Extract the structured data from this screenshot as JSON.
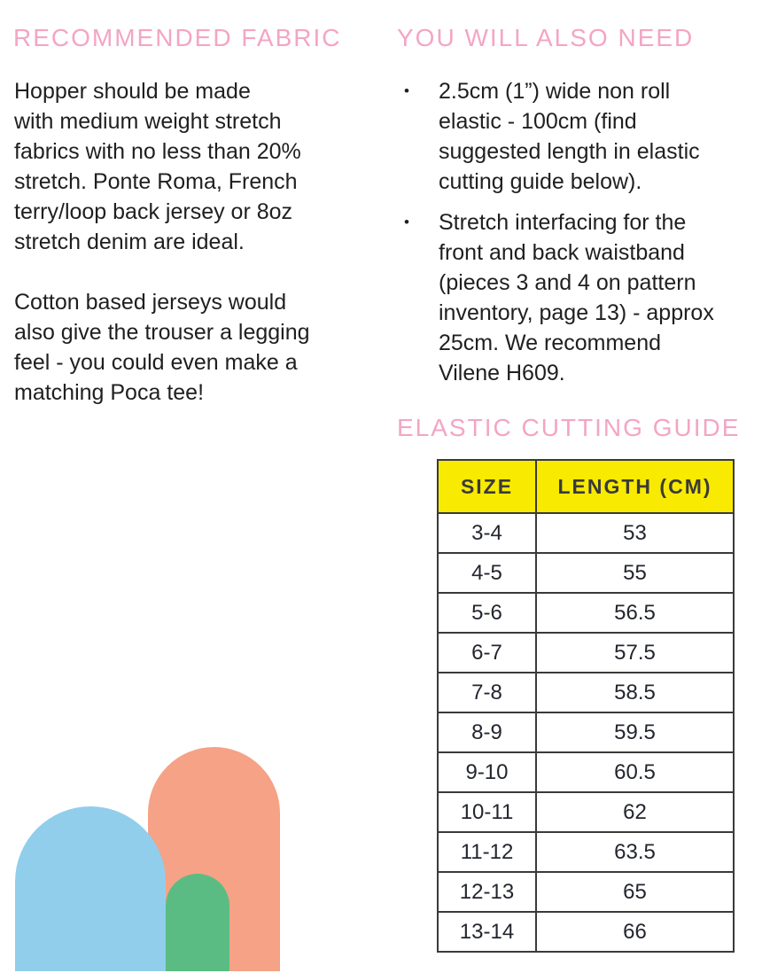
{
  "colors": {
    "heading-pink": "#f4a5c4",
    "body-text": "#1f1f1f",
    "table-yellow": "#f8ea00",
    "table-border": "#3a3a3a",
    "arch-blue": "#91ceec",
    "arch-salmon": "#f5a286",
    "arch-green": "#5bbc83"
  },
  "glyphs": {
    "bullet": "•"
  },
  "recommended_fabric": {
    "heading": "RECOMMENDED FABRIC",
    "paragraphs": [
      "Hopper should be made\nwith medium weight stretch\nfabrics with no less than 20%\nstretch. Ponte Roma, French\nterry/loop back jersey or 8oz\nstretch denim are ideal.",
      "Cotton based jerseys would\nalso give the trouser a legging\nfeel - you could even make a\nmatching Poca tee!"
    ]
  },
  "you_will_need": {
    "heading": "YOU WILL ALSO NEED",
    "items": [
      "2.5cm (1”) wide non roll\nelastic - 100cm (find\nsuggested length in elastic\ncutting guide below).",
      "Stretch interfacing for the\nfront and back waistband\n(pieces 3 and 4 on pattern\ninventory, page 13) - approx\n25cm. We recommend\nVilene H609."
    ]
  },
  "elastic_cutting_guide": {
    "heading": "ELASTIC CUTTING GUIDE",
    "table": {
      "headers": [
        "SIZE",
        "LENGTH (CM)"
      ],
      "rows": [
        {
          "size": "3-4",
          "length": "53"
        },
        {
          "size": "4-5",
          "length": "55"
        },
        {
          "size": "5-6",
          "length": "56.5"
        },
        {
          "size": "6-7",
          "length": "57.5"
        },
        {
          "size": "7-8",
          "length": "58.5"
        },
        {
          "size": "8-9",
          "length": "59.5"
        },
        {
          "size": "9-10",
          "length": "60.5"
        },
        {
          "size": "10-11",
          "length": "62"
        },
        {
          "size": "11-12",
          "length": "63.5"
        },
        {
          "size": "12-13",
          "length": "65"
        },
        {
          "size": "13-14",
          "length": "66"
        }
      ]
    }
  }
}
